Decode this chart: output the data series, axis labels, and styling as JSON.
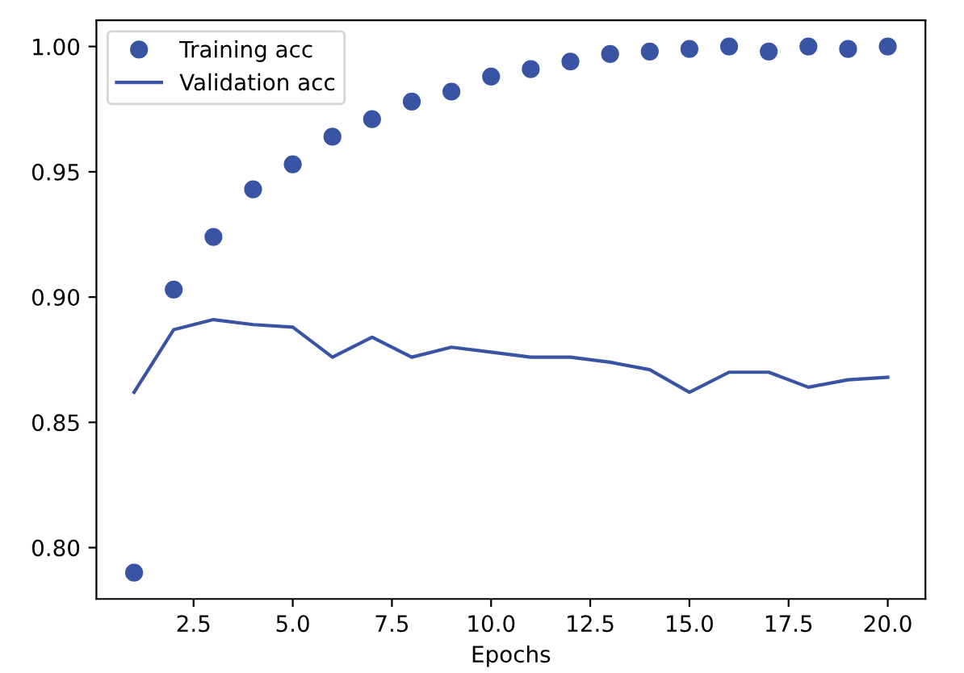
{
  "chart_data": {
    "type": "line",
    "xlabel": "Epochs",
    "x": [
      1,
      2,
      3,
      4,
      5,
      6,
      7,
      8,
      9,
      10,
      11,
      12,
      13,
      14,
      15,
      16,
      17,
      18,
      19,
      20
    ],
    "series": [
      {
        "name": "Training acc",
        "type": "scatter",
        "marker": "circle",
        "color": "#3a54a4",
        "values": [
          0.79,
          0.903,
          0.924,
          0.943,
          0.953,
          0.964,
          0.971,
          0.978,
          0.982,
          0.988,
          0.991,
          0.994,
          0.997,
          0.998,
          0.999,
          1.0,
          0.998,
          1.0,
          0.999,
          1.0
        ]
      },
      {
        "name": "Validation acc",
        "line_style": "solid",
        "color": "#3a54a4",
        "values": [
          0.862,
          0.887,
          0.891,
          0.889,
          0.888,
          0.876,
          0.884,
          0.876,
          0.88,
          0.878,
          0.876,
          0.876,
          0.874,
          0.871,
          0.862,
          0.87,
          0.87,
          0.864,
          0.867,
          0.868
        ]
      }
    ],
    "xlim": [
      0.05,
      20.95
    ],
    "ylim": [
      0.7795,
      1.0105
    ],
    "xticks": [
      {
        "value": 2.5,
        "label": "2.5"
      },
      {
        "value": 5,
        "label": "5.0"
      },
      {
        "value": 7.5,
        "label": "7.5"
      },
      {
        "value": 10,
        "label": "10.0"
      },
      {
        "value": 12.5,
        "label": "12.5"
      },
      {
        "value": 15,
        "label": "15.0"
      },
      {
        "value": 17.5,
        "label": "17.5"
      },
      {
        "value": 20,
        "label": "20.0"
      }
    ],
    "yticks": [
      {
        "value": 0.8,
        "label": "0.80"
      },
      {
        "value": 0.85,
        "label": "0.85"
      },
      {
        "value": 0.9,
        "label": "0.90"
      },
      {
        "value": 0.95,
        "label": "0.95"
      },
      {
        "value": 1.0,
        "label": "1.00"
      }
    ],
    "grid": false,
    "legend": "top left"
  }
}
